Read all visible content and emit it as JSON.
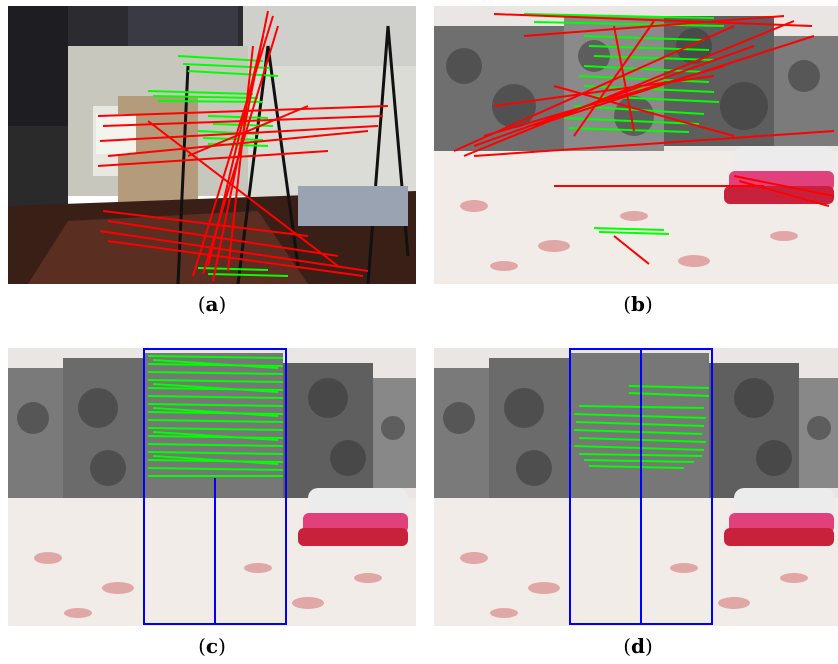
{
  "figure": {
    "panels": [
      {
        "id": "a",
        "caption_open": "(",
        "caption_label": "a",
        "caption_close": ")"
      },
      {
        "id": "b",
        "caption_open": "(",
        "caption_label": "b",
        "caption_close": ")"
      },
      {
        "id": "c",
        "caption_open": "(",
        "caption_label": "c",
        "caption_close": ")"
      },
      {
        "id": "d",
        "caption_open": "(",
        "caption_label": "d",
        "caption_close": ")"
      }
    ]
  },
  "colors": {
    "inlier_match": "#00ff00",
    "outlier_match": "#ff0000",
    "region_box": "#0000ff"
  }
}
